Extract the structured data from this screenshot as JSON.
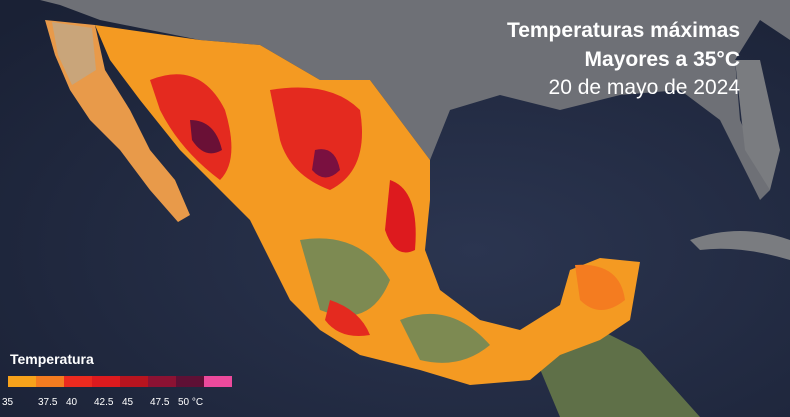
{
  "header": {
    "title": "Temperaturas máximas",
    "subtitle": "Mayores a 35°C",
    "date": "20 de mayo de 2024"
  },
  "legend": {
    "title": "Temperatura",
    "labels": [
      "35",
      "37.5",
      "40",
      "42.5",
      "45",
      "47.5",
      "50 °C"
    ],
    "colors": [
      "#f7a21b",
      "#f47c20",
      "#ec2a1f",
      "#dd1a1e",
      "#b8141f",
      "#8c1233",
      "#5e1035",
      "#ec4a9c"
    ]
  }
}
